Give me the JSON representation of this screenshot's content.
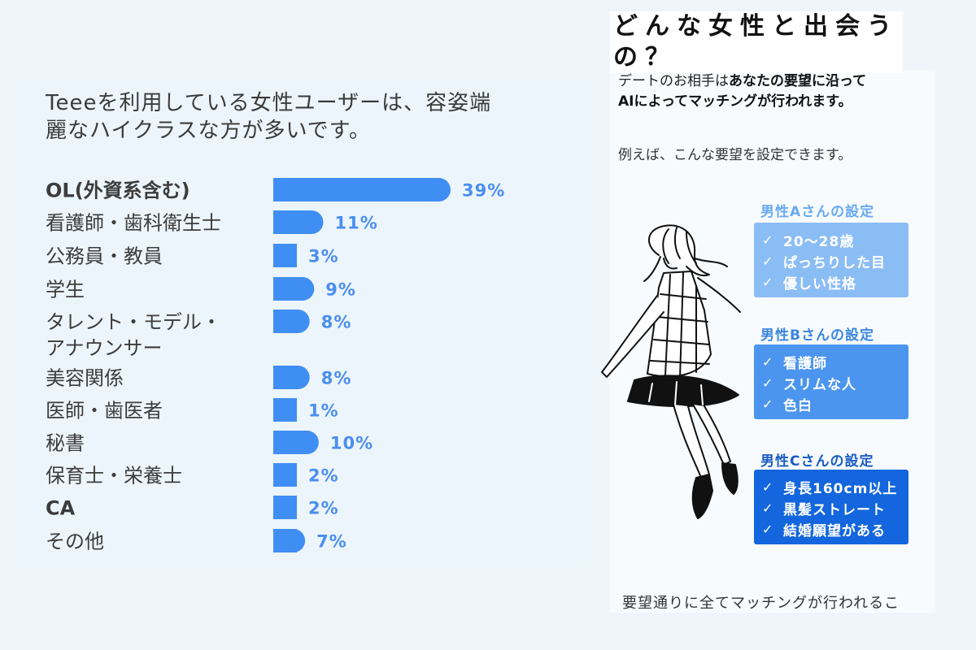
{
  "chart_title": "Teeeを利用している女性ユーザーは、容姿端麗なハイクラスな方が多いです。",
  "chart_data": {
    "type": "bar",
    "orientation": "horizontal",
    "title": "Teeeを利用している女性ユーザーは、容姿端麗なハイクラスな方が多いです。",
    "categories": [
      "OL(外資系含む)",
      "看護師・歯科衛生士",
      "公務員・教員",
      "学生",
      "タレント・モデル・アナウンサー",
      "美容関係",
      "医師・歯医者",
      "秘書",
      "保育士・栄養士",
      "CA",
      "その他"
    ],
    "values": [
      39,
      11,
      3,
      9,
      8,
      8,
      1,
      10,
      2,
      2,
      7
    ],
    "value_labels": [
      "39%",
      "11%",
      "3%",
      "9%",
      "8%",
      "8%",
      "1%",
      "10%",
      "2%",
      "2%",
      "7%"
    ],
    "unit": "%",
    "bar_color": "#3f8ef3",
    "label_color": "#4a8ef0",
    "grid": false,
    "legend": "none"
  },
  "right": {
    "title": "どんな女性と出会うの？",
    "intro_normal_1": "デートのお相手は",
    "intro_bold_1": "あなたの要望に沿って",
    "intro_bold_2": "AIによってマッチングが行われます。",
    "example": "例えば、こんな要望を設定できます。",
    "footer": "要望通りに全てマッチングが行われるこ",
    "illustration_icon": "woman-illustration-icon",
    "settings": [
      {
        "title": "男性Aさんの設定",
        "title_color": "#6aaaf0",
        "box_color": "#8bbdf5",
        "items": [
          "20〜28歳",
          "ぱっちりした目",
          "優しい性格"
        ]
      },
      {
        "title": "男性Bさんの設定",
        "title_color": "#3b86e0",
        "box_color": "#4c95ef",
        "items": [
          "看護師",
          "スリムな人",
          "色白"
        ]
      },
      {
        "title": "男性Cさんの設定",
        "title_color": "#1a5cc4",
        "box_color": "#1366dd",
        "items": [
          "身長160cm以上",
          "黒髪ストレート",
          "結婚願望がある"
        ]
      }
    ],
    "check_icon": "check-icon"
  }
}
